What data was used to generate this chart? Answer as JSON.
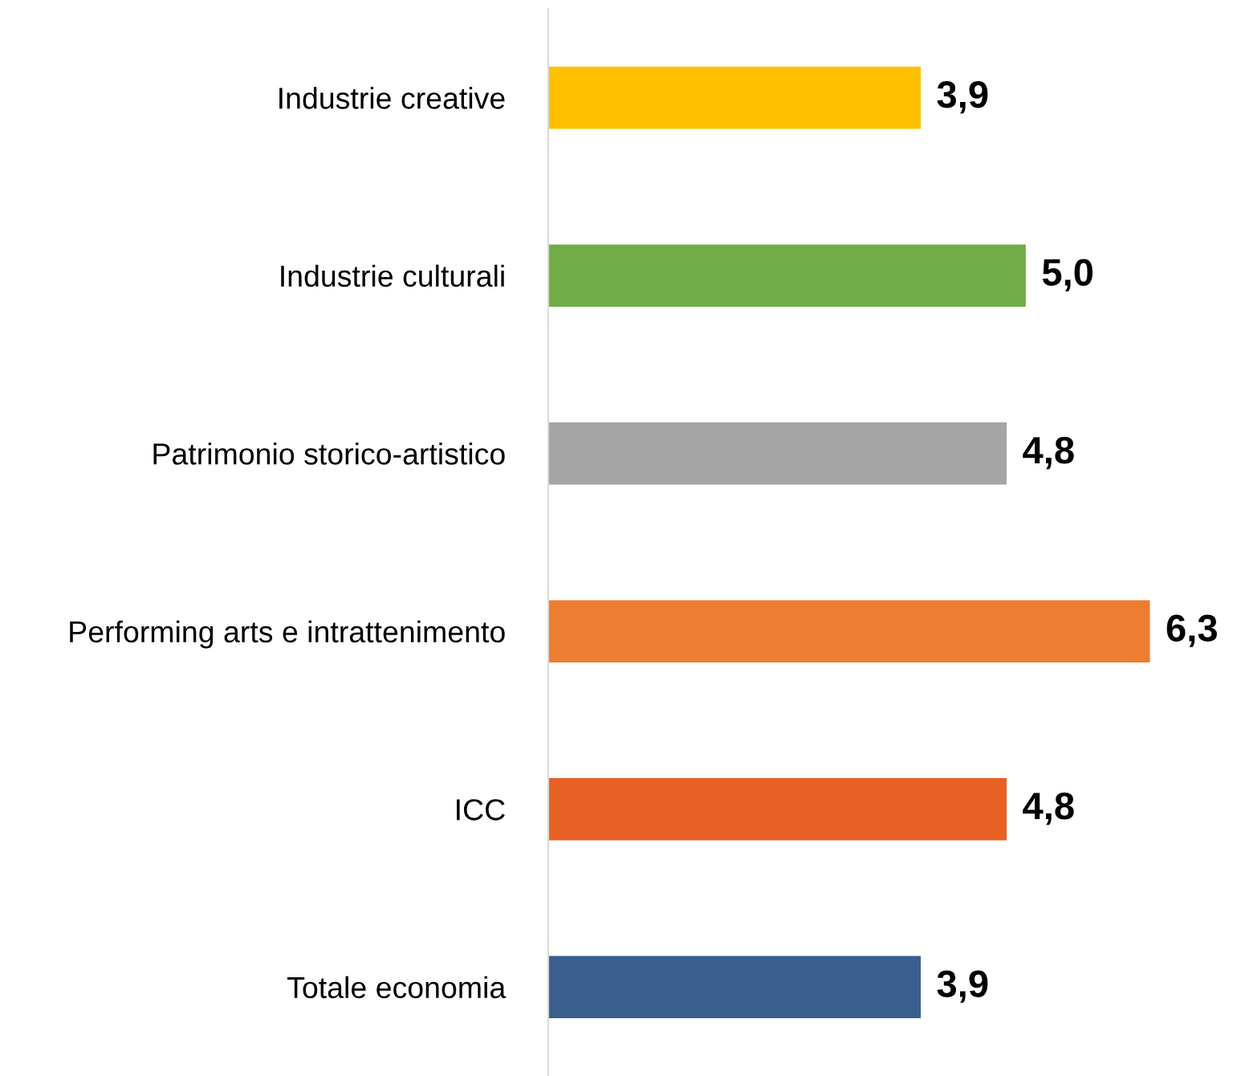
{
  "chart_data": {
    "type": "bar",
    "orientation": "horizontal",
    "categories": [
      "Industrie creative",
      "Industrie culturali",
      "Patrimonio storico-artistico",
      "Performing arts e intrattenimento",
      "ICC",
      "Totale economia"
    ],
    "values": [
      3.9,
      5.0,
      4.8,
      6.3,
      4.8,
      3.9
    ],
    "colors": [
      "#ffc000",
      "#70ad47",
      "#a5a5a5",
      "#ed7d31",
      "#e86024",
      "#3a5f8f"
    ],
    "value_labels": [
      "3,9",
      "5,0",
      "4,8",
      "6,3",
      "4,8",
      "3,9"
    ],
    "tick_labels": "y",
    "grid": false,
    "legend": false
  }
}
